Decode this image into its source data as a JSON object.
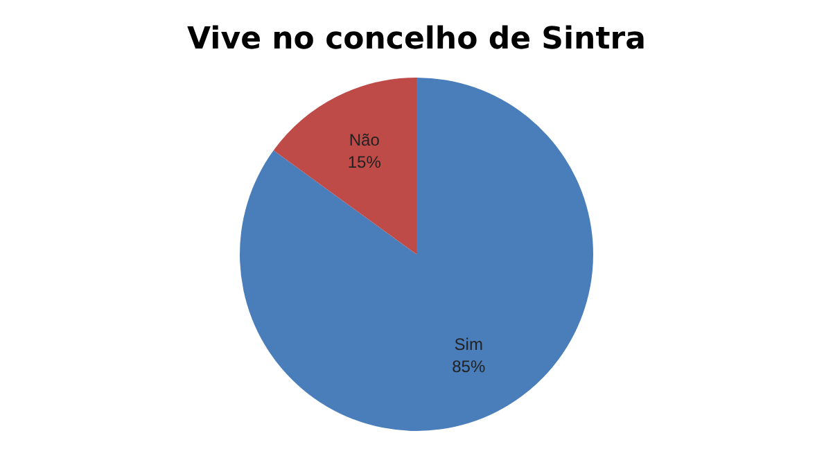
{
  "chart_data": {
    "type": "pie",
    "title": "Vive no concelho de Sintra",
    "categories": [
      "Sim",
      "Não"
    ],
    "values": [
      85,
      15
    ],
    "colors": [
      "#4a7ebb",
      "#be4b48"
    ],
    "value_labels": [
      "85%",
      "15%"
    ],
    "legend": false
  }
}
